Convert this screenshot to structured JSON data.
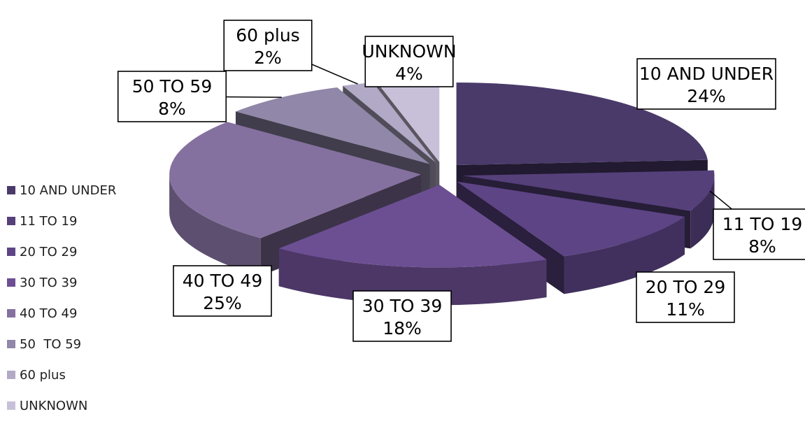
{
  "chart_data": {
    "type": "pie",
    "style": "3d-exploded",
    "title": "",
    "categories": [
      "10 AND UNDER",
      "11 TO 19",
      "20 TO 29",
      "30 TO 39",
      "40 TO 49",
      "50  TO 59",
      "60 plus",
      "UNKNOWN"
    ],
    "values": [
      24,
      8,
      11,
      18,
      25,
      8,
      2,
      4
    ],
    "value_labels": [
      "24%",
      "8%",
      "11%",
      "18%",
      "25%",
      "8%",
      "2%",
      "4%"
    ],
    "colors": [
      "#4a3a6a",
      "#55407a",
      "#5d4485",
      "#6c4f93",
      "#85719f",
      "#9187a8",
      "#b1a9c5",
      "#c8c0d8"
    ],
    "legend_position": "left"
  }
}
